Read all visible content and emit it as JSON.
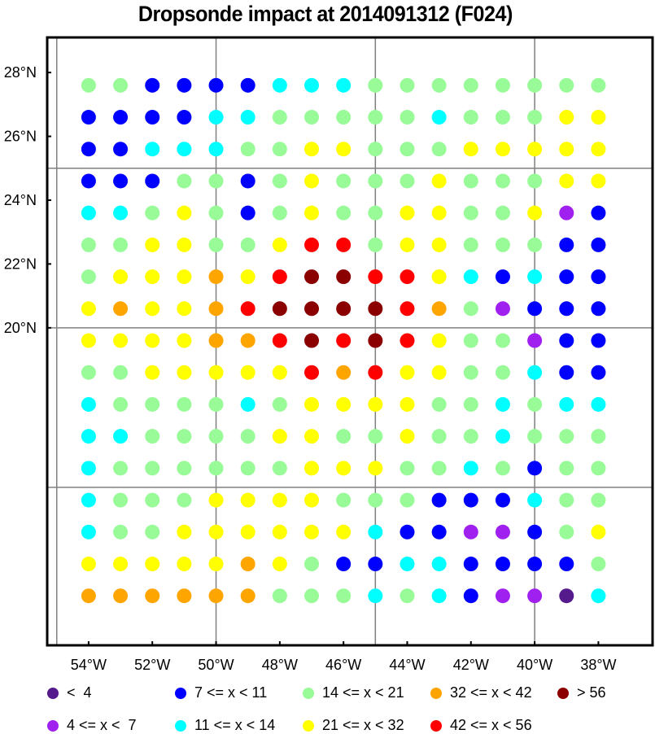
{
  "chart_data": {
    "type": "scatter",
    "title": "Dropsonde impact at 2014091312 (F024)",
    "xlabel": "",
    "ylabel": "",
    "xlim": [
      -55.3,
      -36.3
    ],
    "ylim": [
      10.05,
      29.1
    ],
    "grid": true,
    "grid_lon": [
      -55,
      -50,
      -45,
      -40
    ],
    "grid_lat": [
      15,
      20,
      25
    ],
    "x_ticks": [
      -54,
      -52,
      -50,
      -48,
      -46,
      -44,
      -42,
      -40,
      -38
    ],
    "x_tick_labels": [
      "54°W",
      "52°W",
      "50°W",
      "48°W",
      "46°W",
      "44°W",
      "42°W",
      "40°W",
      "38°W"
    ],
    "y_ticks": [
      20,
      22,
      24,
      26,
      28
    ],
    "y_tick_labels": [
      "20°N",
      "22°N",
      "24°N",
      "26°N",
      "28°N"
    ],
    "lons": [
      -54,
      -53,
      -52,
      -51,
      -50,
      -49,
      -48,
      -47,
      -46,
      -45,
      -44,
      -43,
      -42,
      -41,
      -40,
      -39,
      -38
    ],
    "lats": [
      27.6,
      26.6,
      25.6,
      24.6,
      23.6,
      22.6,
      21.6,
      20.6,
      19.6,
      18.6,
      17.6,
      16.6,
      15.6,
      14.6,
      13.6,
      12.6,
      11.6
    ],
    "category_grid": [
      "GGBBBBCCCGGGGGGGG",
      "BBBBCCGGGGGCGGGYY",
      "BBCCCGGYYGGGYYYYY",
      "BBBGGBGYGGGYGGGYY",
      "CCGYGBGYGGYYGGYPB",
      "GGYYGGYRRGYYGGGBB",
      "GYYYOYRDDRRYCBCBB",
      "YOYYORDDDDROGPBBB",
      "YYYYOORDRDRYGGPBB",
      "GGYYYYYRORYYGGCBB",
      "CGGGGCGYYYYGGCGCC",
      "CCGGGGYYGGYGGCGGG",
      "CGGGGGGYYYGGCGBGG",
      "CGGGYYYYGGGBBBCGG",
      "CGGYYYYYYCBBPPBGY",
      "YYYYYOYGBBCCBBBBG",
      "OOOOOOGGGCGCBPPVC"
    ],
    "legend_placement": "bottom",
    "legend": [
      {
        "code": "V",
        "label": "<  4",
        "color": "#551a8b"
      },
      {
        "code": "B",
        "label": "7 <= x < 11",
        "color": "#0000ff"
      },
      {
        "code": "G",
        "label": "14 <= x < 21",
        "color": "#98fb98"
      },
      {
        "code": "O",
        "label": "32 <= x < 42",
        "color": "#ffa500"
      },
      {
        "code": "D",
        "label": "> 56",
        "color": "#8b0000"
      },
      {
        "code": "P",
        "label": "4 <= x <  7",
        "color": "#a020f0"
      },
      {
        "code": "C",
        "label": "11 <= x < 14",
        "color": "#00ffff"
      },
      {
        "code": "Y",
        "label": "21 <= x < 32",
        "color": "#ffff00"
      },
      {
        "code": "R",
        "label": "42 <= x < 56",
        "color": "#ff0000"
      }
    ]
  }
}
